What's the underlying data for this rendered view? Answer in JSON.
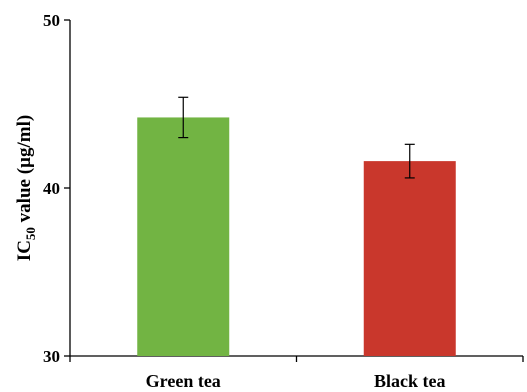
{
  "chart_data": {
    "type": "bar",
    "title": "",
    "xlabel": "",
    "ylabel": {
      "prefix": "IC",
      "subscript": "50",
      "suffix": " value (µg/ml)"
    },
    "categories": [
      "Green tea",
      "Black tea"
    ],
    "values": [
      44.2,
      41.6
    ],
    "errors": [
      1.2,
      1.0
    ],
    "colors": [
      "#72B443",
      "#C9372C"
    ],
    "ylim": [
      30,
      50
    ],
    "yticks": [
      30,
      40,
      50
    ],
    "grid": false,
    "legend": "none"
  }
}
